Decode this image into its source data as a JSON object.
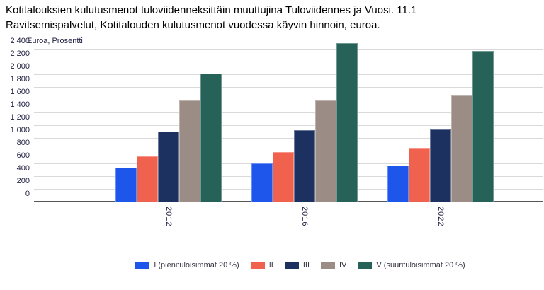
{
  "title": {
    "line1": "Kotitalouksien kulutusmenot tuloviidenneksittäin muuttujina Tuloviidennes ja Vuosi. 11.1",
    "line2": "Ravitsemispalvelut, Kotitalouden kulutusmenot vuodessa käyvin hinnoin, euroa."
  },
  "chart_data": {
    "type": "bar",
    "axis_unit_label": "Euroa, Prosentti",
    "categories": [
      "2012",
      "2016",
      "2022"
    ],
    "series": [
      {
        "name": "I (pienituloisimmat 20 %)",
        "color": "#1e56ec",
        "values": [
          540,
          610,
          580
        ]
      },
      {
        "name": "II",
        "color": "#f0624d",
        "values": [
          720,
          790,
          860
        ]
      },
      {
        "name": "III",
        "color": "#1d3160",
        "values": [
          1110,
          1130,
          1150
        ]
      },
      {
        "name": "IV",
        "color": "#9b8d85",
        "values": [
          1600,
          1600,
          1680
        ]
      },
      {
        "name": "V (suurituloisimmat 20 %)",
        "color": "#266257",
        "values": [
          2020,
          2500,
          2380
        ]
      }
    ],
    "ylabel": "",
    "xlabel": "",
    "ylim": [
      0,
      2400
    ],
    "ytick_step": 200,
    "grid": true,
    "legend_position": "bottom"
  },
  "colors": {
    "grid": "#d9d9d9",
    "axis": "#58585a",
    "tick_text": "#232345",
    "legend_text": "#3a3342",
    "title_text": "#000000"
  }
}
